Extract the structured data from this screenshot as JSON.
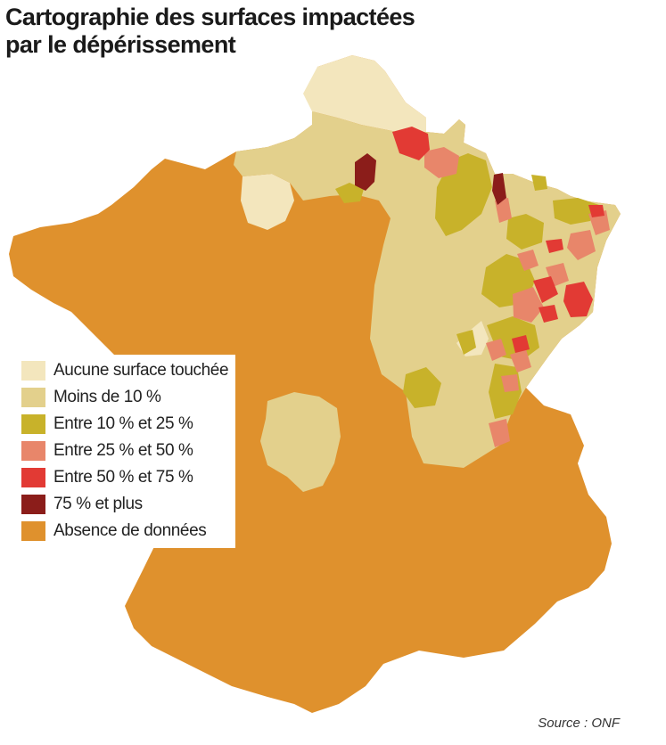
{
  "title": {
    "line1": "Cartographie des surfaces impactées",
    "line2": "par le dépérissement"
  },
  "legend": {
    "items": [
      {
        "label": "Aucune surface touchée",
        "color": "#f3e6bd"
      },
      {
        "label": "Moins de 10 %",
        "color": "#e3d08c"
      },
      {
        "label": "Entre 10 % et 25 %",
        "color": "#c8b22a"
      },
      {
        "label": "Entre 25 % et 50 %",
        "color": "#e8866a"
      },
      {
        "label": "Entre 50 % et 75 %",
        "color": "#e23a34"
      },
      {
        "label": "75 % et plus",
        "color": "#8b1d1a"
      },
      {
        "label": "Absence de données",
        "color": "#df912d"
      }
    ]
  },
  "source": "Source : ONF"
}
